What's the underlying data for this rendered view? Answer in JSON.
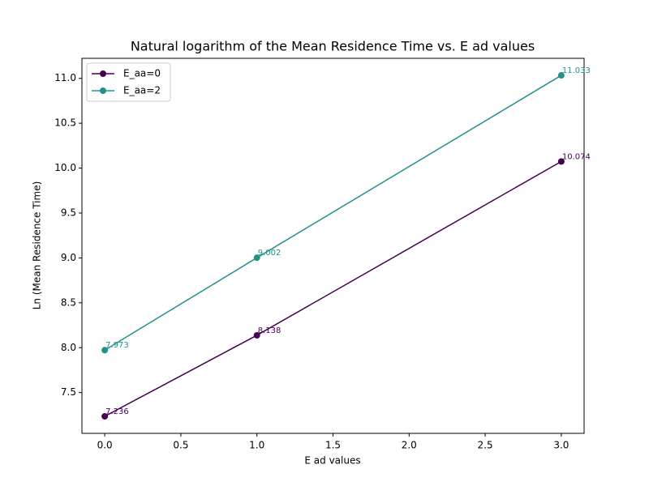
{
  "chart_data": {
    "type": "line",
    "title": "Natural logarithm of the Mean Residence Time vs. E ad values",
    "x_label": "E ad values",
    "y_label": "Ln (Mean Residence Time)",
    "x": [
      0,
      1,
      3
    ],
    "series": [
      {
        "name": "E_aa=0",
        "color": "#440154",
        "values": [
          7.236,
          8.138,
          10.074
        ]
      },
      {
        "name": "E_aa=2",
        "color": "#21918c",
        "values": [
          7.973,
          9.002,
          11.033
        ]
      }
    ],
    "xlim": [
      -0.15,
      3.15
    ],
    "ylim": [
      7.046,
      11.223
    ],
    "xticks": [
      {
        "value": 0,
        "label": "0.0"
      },
      {
        "value": 0.5,
        "label": "0.5"
      },
      {
        "value": 1,
        "label": "1.0"
      },
      {
        "value": 1.5,
        "label": "1.5"
      },
      {
        "value": 2,
        "label": "2.0"
      },
      {
        "value": 2.5,
        "label": "2.5"
      },
      {
        "value": 3,
        "label": "3.0"
      }
    ],
    "yticks": [
      {
        "value": 7.5,
        "label": "7.5"
      },
      {
        "value": 8,
        "label": "8.0"
      },
      {
        "value": 8.5,
        "label": "8.5"
      },
      {
        "value": 9,
        "label": "9.0"
      },
      {
        "value": 9.5,
        "label": "9.5"
      },
      {
        "value": 10,
        "label": "10.0"
      },
      {
        "value": 10.5,
        "label": "10.5"
      },
      {
        "value": 11,
        "label": "11.0"
      }
    ],
    "grid": false,
    "legend": "upper left"
  }
}
